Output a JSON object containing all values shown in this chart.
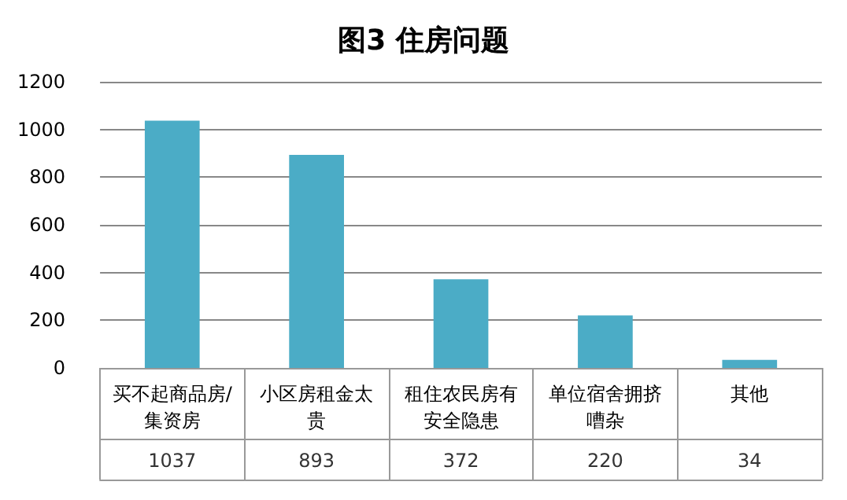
{
  "chart_data": {
    "type": "bar",
    "title": "图3 住房问题",
    "categories": [
      "买不起商品房/集资房",
      "小区房租金太贵",
      "租住农民房有安全隐患",
      "单位宿舍拥挤嘈杂",
      "其他"
    ],
    "values": [
      1037,
      893,
      372,
      220,
      34
    ],
    "color": "#4bacc6",
    "ylim": [
      0,
      1200
    ],
    "yticks": [
      0,
      200,
      400,
      600,
      800,
      1000,
      1200
    ],
    "grid": "y",
    "data_labels": true
  }
}
